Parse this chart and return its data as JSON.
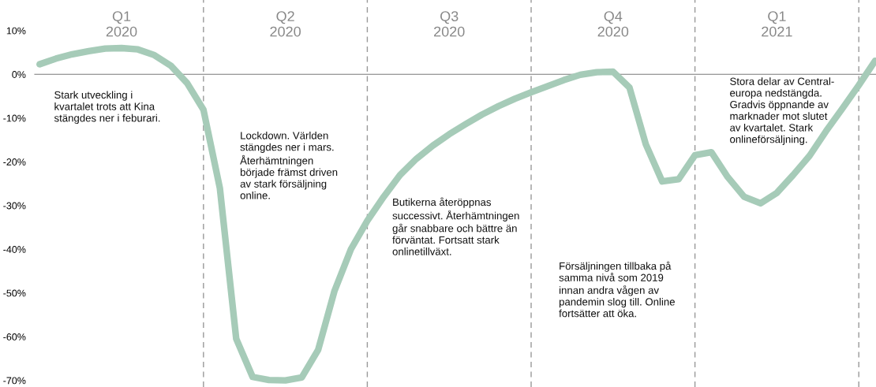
{
  "chart_data": {
    "type": "line",
    "categories": [
      null,
      null,
      null,
      null,
      null,
      "Q1\n2020",
      null,
      null,
      null,
      null,
      null,
      null,
      null,
      null,
      null,
      "Q2\n2020",
      null,
      null,
      null,
      null,
      null,
      null,
      null,
      null,
      null,
      "Q3\n2020",
      null,
      null,
      null,
      null,
      null,
      null,
      null,
      null,
      null,
      "Q4\n2020",
      null,
      null,
      null,
      null,
      null,
      null,
      null,
      null,
      null,
      "Q1\n2021",
      null,
      null,
      null,
      null,
      null,
      null
    ],
    "series": [
      {
        "color": "#a6cbb8",
        "values": [
          2.3,
          3.6,
          4.6,
          5.3,
          5.9,
          6.0,
          5.7,
          4.4,
          2.0,
          -2.0,
          -8.1,
          -26,
          -60.5,
          -69.2,
          -69.9,
          -70,
          -69.3,
          -63,
          -49.5,
          -40,
          -33.5,
          -28,
          -23,
          -19.3,
          -16.3,
          -13.7,
          -11.4,
          -9.2,
          -7.3,
          -5.6,
          -4.1,
          -2.7,
          -1.3,
          -0.1,
          0.5,
          0.6,
          -3,
          -16,
          -24.5,
          -24,
          -18.5,
          -17.8,
          -23.5,
          -28,
          -29.5,
          -27.1,
          -23,
          -18.6,
          -13,
          -7.8,
          -2.5,
          3.1
        ]
      }
    ],
    "ylim": [
      -71.5,
      17
    ],
    "yticks": [
      {
        "value": 10,
        "label": "10%"
      },
      {
        "value": 0,
        "label": "0%"
      },
      {
        "value": -10,
        "label": "-10%"
      },
      {
        "value": -20,
        "label": "-20%"
      },
      {
        "value": -30,
        "label": "-30%"
      },
      {
        "value": -40,
        "label": "-40%"
      },
      {
        "value": -50,
        "label": "-50%"
      },
      {
        "value": -60,
        "label": "-60%"
      },
      {
        "value": -70,
        "label": "-70%"
      }
    ],
    "grid": "x",
    "legend": false,
    "marker": "none",
    "line_style": "solid",
    "annotations": [
      "Stark utveckling i\nkvartalet trots att Kina\nstängdes ner i feburari.",
      "Lockdown. Världen\nstängdes ner i mars.\nÅterhämtningen\nbörjade främst driven\nav stark försäljning\nonline.",
      "Butikerna återöppnas\nsuccessivt. Återhämtningen\ngår snabbare och bättre än\nförväntat. Fortsatt stark\nonlinetillväxt.",
      "Försäljningen tillbaka på\nsamma nivå som 2019\ninnan andra vågen av\npandemin slog till. Online\nfortsätter att öka.",
      "Stora delar av Central-\neuropa nedstängda.\nGradvis öppnande av\nmarknader mot slutet\nav kvartalet. Stark\nonlineförsäljning."
    ]
  }
}
